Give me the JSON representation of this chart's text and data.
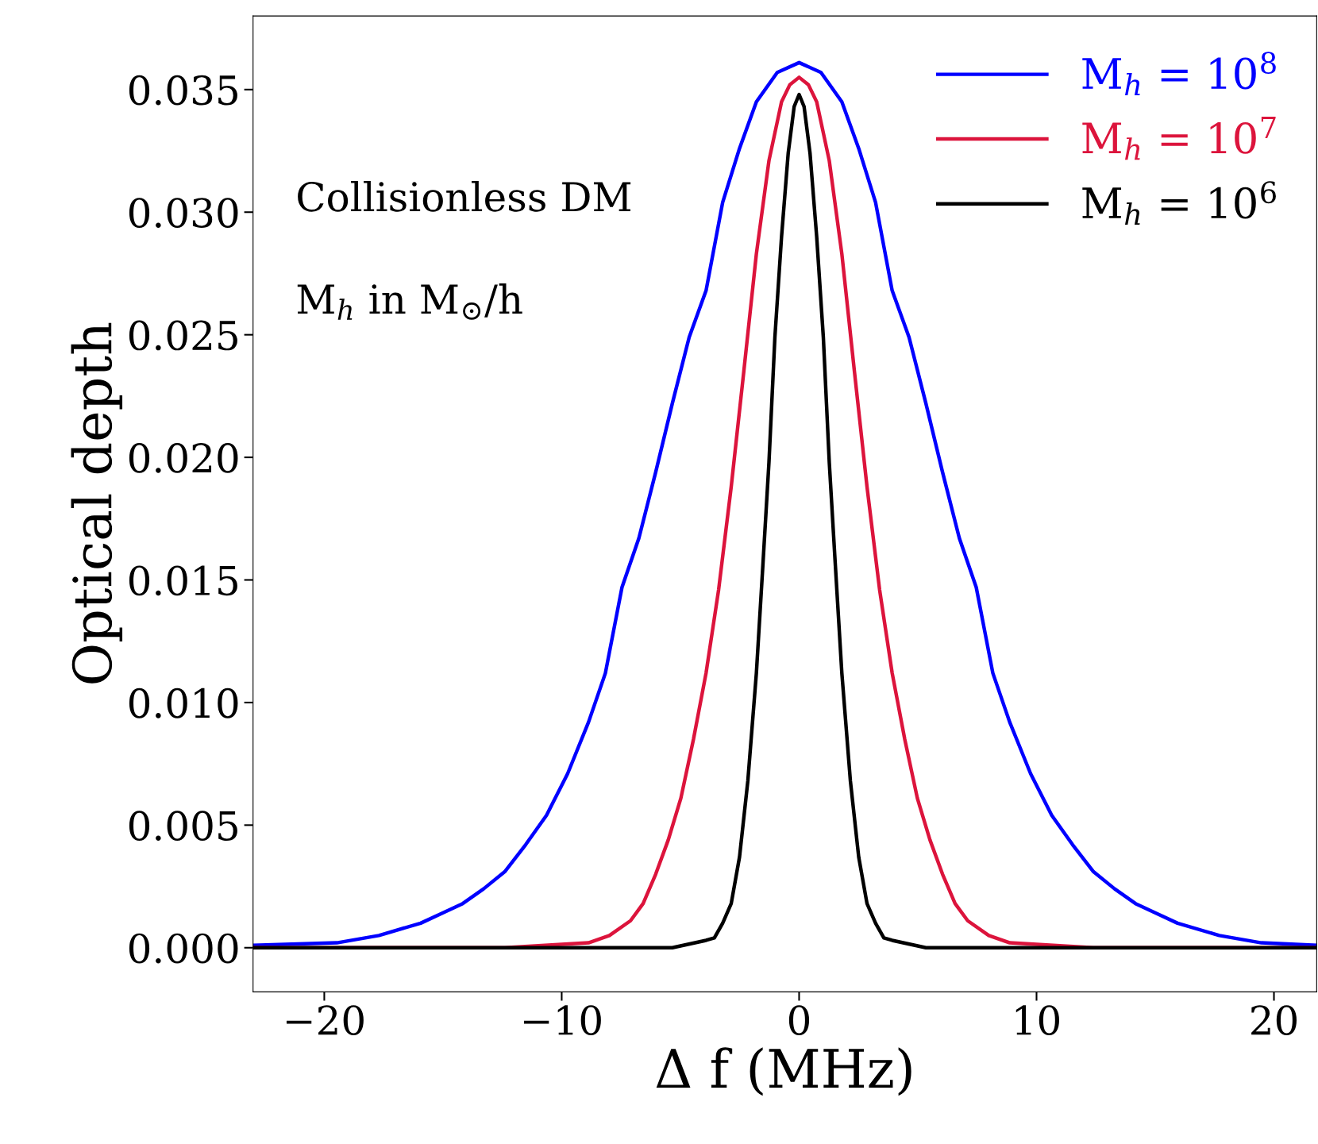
{
  "chart_data": {
    "type": "line",
    "xlabel": "Δ f (MHz)",
    "ylabel": "Optical depth",
    "annotations": [
      "Collisionless DM",
      "M$_{h}$ in M$_{⊙}$/h"
    ],
    "xlim": [
      -23.0,
      21.8
    ],
    "ylim": [
      -0.0018,
      0.038
    ],
    "xticks": [
      {
        "value": -20,
        "label": "−20"
      },
      {
        "value": -10,
        "label": "−10"
      },
      0,
      10,
      20
    ],
    "yticks": [
      {
        "value": 0.0,
        "label": "0.000"
      },
      {
        "value": 0.005,
        "label": "0.005"
      },
      {
        "value": 0.01,
        "label": "0.010"
      },
      {
        "value": 0.015,
        "label": "0.015"
      },
      {
        "value": 0.02,
        "label": "0.020"
      },
      {
        "value": 0.025,
        "label": "0.025"
      },
      {
        "value": 0.03,
        "label": "0.030"
      },
      {
        "value": 0.035,
        "label": "0.035"
      }
    ],
    "grid": false,
    "legend": "top right",
    "marker": "none",
    "line_style": "solid",
    "series": [
      {
        "name": "M$_{h}$ = 10$^{8}$",
        "color": "#0000ff",
        "x": [
          -23.0,
          -19.47,
          -17.7,
          -15.94,
          -15.05,
          -14.17,
          -13.29,
          -12.4,
          -11.52,
          -10.64,
          -9.75,
          -8.87,
          -8.16,
          -7.46,
          -6.75,
          -6.04,
          -5.34,
          -4.63,
          -3.92,
          -3.22,
          -2.51,
          -1.8,
          -0.92,
          0,
          0.92,
          1.8,
          2.51,
          3.22,
          3.92,
          4.63,
          5.34,
          6.04,
          6.75,
          7.46,
          8.16,
          8.87,
          9.75,
          10.64,
          11.52,
          12.4,
          13.29,
          14.17,
          15.05,
          15.94,
          17.7,
          19.47,
          21.8
        ],
        "values": [
          0.0001,
          0.0002,
          0.0005,
          0.001,
          0.0014,
          0.0018,
          0.0024,
          0.0031,
          0.0042,
          0.0054,
          0.0071,
          0.0092,
          0.0112,
          0.0147,
          0.0167,
          0.0194,
          0.0222,
          0.0249,
          0.0268,
          0.0304,
          0.0326,
          0.0345,
          0.0357,
          0.0361,
          0.0357,
          0.0345,
          0.0326,
          0.0304,
          0.0268,
          0.0249,
          0.0222,
          0.0194,
          0.0167,
          0.0147,
          0.0112,
          0.0092,
          0.0071,
          0.0054,
          0.0042,
          0.0031,
          0.0024,
          0.0018,
          0.0014,
          0.001,
          0.0005,
          0.0002,
          0.0001
        ]
      },
      {
        "name": "M$_{h}$ = 10$^{7}$",
        "color": "#dc143c",
        "x": [
          -23.0,
          -12.4,
          -8.87,
          -7.99,
          -7.1,
          -6.57,
          -6.04,
          -5.51,
          -4.98,
          -4.45,
          -3.92,
          -3.39,
          -2.86,
          -2.33,
          -1.8,
          -1.27,
          -0.74,
          -0.39,
          0,
          0.39,
          0.74,
          1.27,
          1.8,
          2.33,
          2.86,
          3.39,
          3.92,
          4.45,
          4.98,
          5.51,
          6.04,
          6.57,
          7.1,
          7.99,
          8.87,
          12.4,
          21.8
        ],
        "values": [
          0,
          0,
          0.0002,
          0.0005,
          0.0011,
          0.0018,
          0.003,
          0.0044,
          0.0061,
          0.0085,
          0.0112,
          0.0146,
          0.0188,
          0.0235,
          0.0283,
          0.0321,
          0.0345,
          0.0352,
          0.0355,
          0.0352,
          0.0345,
          0.0321,
          0.0283,
          0.0235,
          0.0188,
          0.0146,
          0.0112,
          0.0085,
          0.0061,
          0.0044,
          0.003,
          0.0018,
          0.0011,
          0.0005,
          0.0002,
          0,
          0
        ]
      },
      {
        "name": "M$_{h}$ = 10$^{6}$",
        "color": "#000000",
        "x": [
          -23.0,
          -5.34,
          -3.92,
          -3.57,
          -3.22,
          -2.86,
          -2.51,
          -2.16,
          -1.8,
          -1.52,
          -1.27,
          -1.02,
          -0.74,
          -0.46,
          -0.21,
          0,
          0.21,
          0.46,
          0.74,
          1.02,
          1.27,
          1.52,
          1.8,
          2.16,
          2.51,
          2.86,
          3.22,
          3.57,
          3.92,
          5.34,
          21.8
        ],
        "values": [
          0,
          0,
          0.0003,
          0.0004,
          0.001,
          0.0018,
          0.0037,
          0.0068,
          0.0112,
          0.0157,
          0.0198,
          0.0249,
          0.029,
          0.0324,
          0.0343,
          0.0348,
          0.0343,
          0.0324,
          0.029,
          0.0249,
          0.0198,
          0.0157,
          0.0112,
          0.0068,
          0.0037,
          0.0018,
          0.001,
          0.0004,
          0.0003,
          0,
          0
        ]
      }
    ]
  }
}
